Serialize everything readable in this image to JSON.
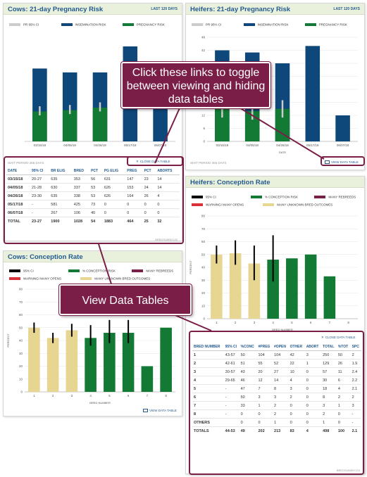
{
  "colors": {
    "insem": "#0e4779",
    "preg": "#127a34",
    "many_rebreeds": "#7a1f47",
    "warning": "#d9313b",
    "unknown": "#e7d592",
    "ci": "#000000",
    "pr_ci": "#cccccc",
    "accent": "#245a8f",
    "callout": "#7a1e48"
  },
  "cows_preg": {
    "title": "Cows: 21-day Pregnancy Risk",
    "last": "LAST 120 DAYS",
    "legend": [
      "PR 95% CI",
      "INSEMINATION RISK",
      "PREGNANCY RISK"
    ],
    "close_link": "CLOSE DATA TABLE",
    "wait": "WAIT PERIOD 365 DAYS",
    "table": {
      "headers": [
        "DATE",
        "95% CI",
        "BR ELIG",
        "BRED",
        "PCT",
        "PG ELIG",
        "PREG",
        "PCT",
        "ABORTS"
      ],
      "rows": [
        [
          "03/15/18",
          "20-27",
          "635",
          "353",
          "56",
          "631",
          "147",
          "23",
          "14"
        ],
        [
          "04/05/18",
          "21-28",
          "630",
          "337",
          "53",
          "626",
          "153",
          "24",
          "14"
        ],
        [
          "04/26/18",
          "23-30",
          "635",
          "338",
          "53",
          "626",
          "164",
          "26",
          "4"
        ],
        [
          "05/17/18",
          "-",
          "581",
          "425",
          "73",
          "0",
          "0",
          "0",
          "0"
        ],
        [
          "06/07/18",
          "-",
          "267",
          "106",
          "40",
          "0",
          "0",
          "0",
          "0"
        ]
      ],
      "total": [
        "TOTAL",
        "23-27",
        "1900",
        "1028",
        "54",
        "1883",
        "464",
        "25",
        "32"
      ]
    },
    "brand": "BREDSUM\\ID120"
  },
  "heifers_preg": {
    "title": "Heifers: 21-day Pregnancy Risk",
    "last": "LAST 120 DAYS",
    "legend": [
      "PR 95% CI",
      "INSEMINATION RISK",
      "PREGNANCY RISK"
    ],
    "ylabel": "PERCENT",
    "xlabel": "DATE",
    "wait": "WAIT PERIOD 365 DAYS",
    "view_link": "VIEW DATA TABLE"
  },
  "heifers_conc": {
    "title": "Heifers: Conception Rate",
    "legend": [
      "95% CI",
      "% CONCEPTION RISK",
      "MANY REBREEDS",
      "WARNING! MANY OPENS",
      "MANY UNKNOWN BRED OUTCOMES"
    ],
    "ylabel": "PERCENT",
    "xlabel": "BRED NUMBER",
    "close_link": "CLOSE DATA TABLE",
    "table": {
      "headers": [
        "BRED NUMBER",
        "95% CI",
        "%CONC",
        "#PREG",
        "#OPEN",
        "OTHER",
        "ABORT",
        "TOTAL",
        "%TOT",
        "SPC"
      ],
      "rows": [
        [
          "1",
          "43-57",
          "50",
          "104",
          "104",
          "42",
          "3",
          "250",
          "50",
          "2"
        ],
        [
          "2",
          "42-61",
          "51",
          "55",
          "52",
          "22",
          "1",
          "129",
          "26",
          "1.9"
        ],
        [
          "3",
          "30-57",
          "43",
          "20",
          "27",
          "10",
          "0",
          "57",
          "11",
          "2.4"
        ],
        [
          "4",
          "29-65",
          "46",
          "12",
          "14",
          "4",
          "0",
          "30",
          "6",
          "2.2"
        ],
        [
          "5",
          "-",
          "47",
          "7",
          "8",
          "3",
          "0",
          "18",
          "4",
          "2.1"
        ],
        [
          "6",
          "-",
          "50",
          "3",
          "3",
          "2",
          "0",
          "8",
          "2",
          "2"
        ],
        [
          "7",
          "-",
          "33",
          "1",
          "2",
          "0",
          "0",
          "3",
          "1",
          "3"
        ],
        [
          "8",
          "-",
          "0",
          "0",
          "2",
          "0",
          "0",
          "2",
          "0",
          "-"
        ],
        [
          "OTHERS",
          "",
          "0",
          "0",
          "1",
          "0",
          "0",
          "1",
          "0",
          "-"
        ]
      ],
      "total": [
        "TOTALS",
        "44-53",
        "49",
        "202",
        "213",
        "83",
        "4",
        "498",
        "100",
        "2.1"
      ]
    },
    "brand": "BREDSUM\\BY120"
  },
  "cows_conc": {
    "title": "Cows: Conception Rate",
    "legend": [
      "95% CI",
      "% CONCEPTION RISK",
      "MANY REBREEDS",
      "WARNING! MANY OPENS",
      "MANY UNKNOWN BRED OUTCOMES"
    ],
    "ylabel": "PERCENT",
    "xlabel": "BRED NUMBER",
    "view_link": "VIEW DATA TABLE"
  },
  "callouts": {
    "toggle": [
      "Click these links to toggle",
      "between viewing and hiding",
      "data tables"
    ],
    "view": "View Data Tables"
  },
  "chart_data": [
    {
      "type": "bar",
      "title": "Cows: 21-day Pregnancy Risk",
      "categories": [
        "03/15/18",
        "04/05/18",
        "04/26/18",
        "05/17/18",
        "06/07/18"
      ],
      "series": [
        {
          "name": "INSEMINATION RISK",
          "values": [
            56,
            53,
            53,
            73,
            40
          ]
        },
        {
          "name": "PREGNANCY RISK",
          "values": [
            23,
            24,
            26,
            0,
            0
          ]
        }
      ],
      "ci": [
        [
          20,
          27
        ],
        [
          21,
          28
        ],
        [
          23,
          30
        ],
        null,
        null
      ],
      "ylim": [
        0,
        80
      ]
    },
    {
      "type": "bar",
      "title": "Heifers: 21-day Pregnancy Risk",
      "categories": [
        "03/15/18",
        "04/05/18",
        "04/26/18",
        "05/17/18",
        "06/07/18"
      ],
      "yticks": [
        "0",
        "6",
        "12",
        "18",
        "24",
        "30",
        "36",
        "42",
        "48"
      ],
      "series": [
        {
          "name": "INSEMINATION RISK",
          "values": [
            42,
            41,
            36,
            44,
            12
          ]
        },
        {
          "name": "PREGNANCY RISK",
          "values": [
            15,
            14,
            15,
            0,
            0
          ]
        }
      ],
      "ci": [
        [
          11,
          19
        ],
        [
          10,
          18
        ],
        [
          11,
          19
        ],
        null,
        null
      ],
      "ylim": [
        0,
        48
      ],
      "ylabel": "PERCENT",
      "xlabel": "DATE"
    },
    {
      "type": "bar",
      "title": "Heifers: Conception Rate",
      "categories": [
        "1",
        "2",
        "3",
        "4",
        "5",
        "6",
        "7",
        "8"
      ],
      "yticks": [
        "0",
        "10",
        "20",
        "30",
        "40",
        "50",
        "60",
        "70",
        "80"
      ],
      "values": [
        50,
        51,
        43,
        46,
        47,
        50,
        33,
        0
      ],
      "ci": [
        [
          43,
          57
        ],
        [
          42,
          61
        ],
        [
          30,
          57
        ],
        [
          29,
          65
        ],
        null,
        null,
        null,
        null
      ],
      "kinds": [
        "unknown",
        "unknown",
        "unknown",
        "conc",
        "conc",
        "conc",
        "conc",
        "conc"
      ],
      "ylim": [
        0,
        80
      ],
      "ylabel": "PERCENT",
      "xlabel": "BRED NUMBER"
    },
    {
      "type": "bar",
      "title": "Cows: Conception Rate",
      "categories": [
        "1",
        "2",
        "3",
        "4",
        "5",
        "6",
        "7",
        "8"
      ],
      "yticks": [
        "0",
        "10",
        "20",
        "30",
        "40",
        "50",
        "60",
        "70",
        "80"
      ],
      "values": [
        50,
        42,
        48,
        42,
        46,
        46,
        20,
        50
      ],
      "ci": [
        [
          46,
          54
        ],
        [
          38,
          46
        ],
        [
          43,
          53
        ],
        [
          36,
          52
        ],
        [
          38,
          56
        ],
        [
          38,
          56
        ],
        null,
        null
      ],
      "kinds": [
        "unknown",
        "unknown",
        "unknown",
        "conc",
        "conc",
        "conc",
        "conc",
        "conc"
      ],
      "ylim": [
        0,
        80
      ],
      "ylabel": "PERCENT",
      "xlabel": "BRED NUMBER"
    }
  ]
}
